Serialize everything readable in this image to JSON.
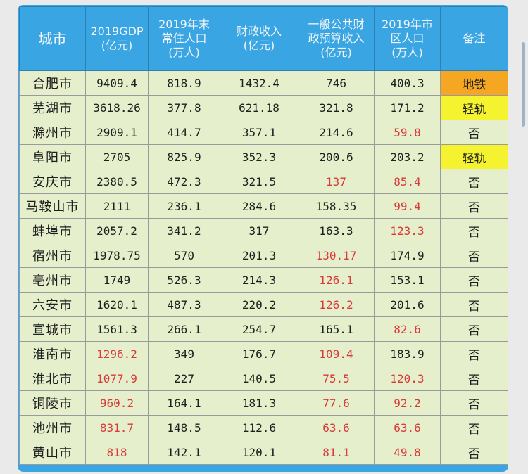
{
  "headers": [
    "城市",
    "2019GDP\n(亿元)",
    "2019年末\n常住人口\n(万人)",
    "财政收入\n(亿元)",
    "一般公共财\n政预算收入\n(亿元)",
    "2019年市\n区人口\n(万人)",
    "备注"
  ],
  "colors": {
    "header_bg": "#39a6e3",
    "row_bg": "#e6efcb",
    "highlight_red": "#d8393a",
    "metro_orange": "#f5a623",
    "light_rail_yellow": "#f5f230"
  },
  "rows": [
    {
      "cells": [
        "合肥市",
        "9409.4",
        "818.9",
        "1432.4",
        "746",
        "400.3",
        "地铁"
      ],
      "red": [],
      "note_bg": "orange"
    },
    {
      "cells": [
        "芜湖市",
        "3618.26",
        "377.8",
        "621.18",
        "321.8",
        "171.2",
        "轻轨"
      ],
      "red": [],
      "note_bg": "yellow"
    },
    {
      "cells": [
        "滁州市",
        "2909.1",
        "414.7",
        "357.1",
        "214.6",
        "59.8",
        "否"
      ],
      "red": [
        5
      ],
      "note_bg": ""
    },
    {
      "cells": [
        "阜阳市",
        "2705",
        "825.9",
        "352.3",
        "200.6",
        "203.2",
        "轻轨"
      ],
      "red": [],
      "note_bg": "yellow"
    },
    {
      "cells": [
        "安庆市",
        "2380.5",
        "472.3",
        "321.5",
        "137",
        "85.4",
        "否"
      ],
      "red": [
        4,
        5
      ],
      "note_bg": ""
    },
    {
      "cells": [
        "马鞍山市",
        "2111",
        "236.1",
        "284.6",
        "158.35",
        "99.4",
        "否"
      ],
      "red": [
        5
      ],
      "note_bg": ""
    },
    {
      "cells": [
        "蚌埠市",
        "2057.2",
        "341.2",
        "317",
        "163.3",
        "123.3",
        "否"
      ],
      "red": [
        5
      ],
      "note_bg": ""
    },
    {
      "cells": [
        "宿州市",
        "1978.75",
        "570",
        "201.3",
        "130.17",
        "174.9",
        "否"
      ],
      "red": [
        4
      ],
      "note_bg": ""
    },
    {
      "cells": [
        "亳州市",
        "1749",
        "526.3",
        "214.3",
        "126.1",
        "153.1",
        "否"
      ],
      "red": [
        4
      ],
      "note_bg": ""
    },
    {
      "cells": [
        "六安市",
        "1620.1",
        "487.3",
        "220.2",
        "126.2",
        "201.6",
        "否"
      ],
      "red": [
        4
      ],
      "note_bg": ""
    },
    {
      "cells": [
        "宣城市",
        "1561.3",
        "266.1",
        "254.7",
        "165.1",
        "82.6",
        "否"
      ],
      "red": [
        5
      ],
      "note_bg": ""
    },
    {
      "cells": [
        "淮南市",
        "1296.2",
        "349",
        "176.7",
        "109.4",
        "183.9",
        "否"
      ],
      "red": [
        1,
        4
      ],
      "note_bg": ""
    },
    {
      "cells": [
        "淮北市",
        "1077.9",
        "227",
        "140.5",
        "75.5",
        "120.3",
        "否"
      ],
      "red": [
        1,
        4,
        5
      ],
      "note_bg": ""
    },
    {
      "cells": [
        "铜陵市",
        "960.2",
        "164.1",
        "181.3",
        "77.6",
        "92.2",
        "否"
      ],
      "red": [
        1,
        4,
        5
      ],
      "note_bg": ""
    },
    {
      "cells": [
        "池州市",
        "831.7",
        "148.5",
        "112.6",
        "63.6",
        "63.6",
        "否"
      ],
      "red": [
        1,
        4,
        5
      ],
      "note_bg": ""
    },
    {
      "cells": [
        "黄山市",
        "818",
        "142.1",
        "120.1",
        "81.1",
        "49.8",
        "否"
      ],
      "red": [
        1,
        4,
        5
      ],
      "note_bg": ""
    }
  ]
}
